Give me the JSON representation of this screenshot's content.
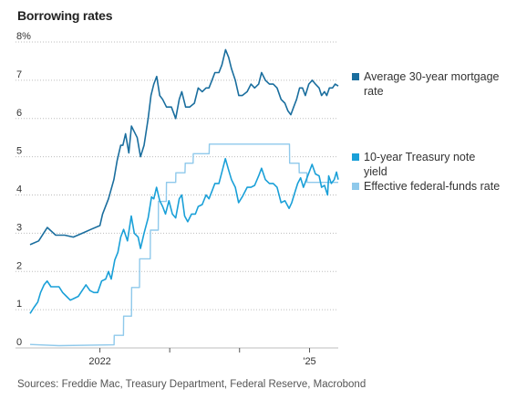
{
  "title": "Borrowing rates",
  "source": "Sources: Freddie Mac, Treasury Department, Federal Reserve, Macrobond",
  "colors": {
    "mortgage": "#1a6e9e",
    "treasury": "#1aa0d8",
    "fedfunds": "#8fc9eb",
    "grid": "#bdbdbd"
  },
  "legend": {
    "mortgage": "Average 30-year mortgage rate",
    "treasury": "10-year Treasury note yield",
    "fedfunds": "Effective federal-funds rate"
  },
  "chart_data": {
    "type": "line",
    "title": "Borrowing rates",
    "xlabel": "",
    "ylabel": "",
    "ylim": [
      0,
      8
    ],
    "xlim": [
      "2021-01-01",
      "2025-05-31"
    ],
    "yticks": [
      "0",
      "1",
      "2",
      "3",
      "4",
      "5",
      "6",
      "7",
      "8%"
    ],
    "xticks": [
      {
        "label": "2022",
        "date": "2022-01-01"
      },
      {
        "label": "'25",
        "date": "2025-01-01"
      }
    ],
    "grid": "horizontal-dotted",
    "legend_position": "right",
    "series": [
      {
        "name": "Average 30-year mortgage rate",
        "key": "mortgage",
        "points": [
          [
            "2021-01-01",
            2.7
          ],
          [
            "2021-02-15",
            2.8
          ],
          [
            "2021-04-01",
            3.15
          ],
          [
            "2021-05-15",
            2.95
          ],
          [
            "2021-07-01",
            2.95
          ],
          [
            "2021-08-15",
            2.9
          ],
          [
            "2021-10-01",
            3.0
          ],
          [
            "2021-11-15",
            3.1
          ],
          [
            "2022-01-01",
            3.2
          ],
          [
            "2022-01-15",
            3.5
          ],
          [
            "2022-02-15",
            3.9
          ],
          [
            "2022-03-15",
            4.4
          ],
          [
            "2022-04-01",
            4.9
          ],
          [
            "2022-04-20",
            5.3
          ],
          [
            "2022-05-01",
            5.3
          ],
          [
            "2022-05-15",
            5.6
          ],
          [
            "2022-06-01",
            5.1
          ],
          [
            "2022-06-15",
            5.8
          ],
          [
            "2022-06-25",
            5.7
          ],
          [
            "2022-07-15",
            5.5
          ],
          [
            "2022-08-01",
            5.0
          ],
          [
            "2022-08-20",
            5.3
          ],
          [
            "2022-09-10",
            6.0
          ],
          [
            "2022-09-25",
            6.6
          ],
          [
            "2022-10-10",
            6.9
          ],
          [
            "2022-10-25",
            7.1
          ],
          [
            "2022-11-10",
            6.6
          ],
          [
            "2022-11-25",
            6.5
          ],
          [
            "2022-12-15",
            6.3
          ],
          [
            "2023-01-10",
            6.3
          ],
          [
            "2023-02-01",
            6.0
          ],
          [
            "2023-02-20",
            6.5
          ],
          [
            "2023-03-05",
            6.7
          ],
          [
            "2023-03-25",
            6.3
          ],
          [
            "2023-04-15",
            6.3
          ],
          [
            "2023-05-10",
            6.4
          ],
          [
            "2023-05-30",
            6.8
          ],
          [
            "2023-06-20",
            6.7
          ],
          [
            "2023-07-10",
            6.8
          ],
          [
            "2023-07-25",
            6.8
          ],
          [
            "2023-08-10",
            7.0
          ],
          [
            "2023-08-25",
            7.2
          ],
          [
            "2023-09-15",
            7.2
          ],
          [
            "2023-10-01",
            7.4
          ],
          [
            "2023-10-20",
            7.8
          ],
          [
            "2023-11-05",
            7.6
          ],
          [
            "2023-11-20",
            7.3
          ],
          [
            "2023-12-10",
            7.0
          ],
          [
            "2023-12-28",
            6.6
          ],
          [
            "2024-01-15",
            6.6
          ],
          [
            "2024-02-10",
            6.7
          ],
          [
            "2024-03-01",
            6.9
          ],
          [
            "2024-03-20",
            6.8
          ],
          [
            "2024-04-10",
            6.9
          ],
          [
            "2024-04-25",
            7.2
          ],
          [
            "2024-05-15",
            7.0
          ],
          [
            "2024-06-05",
            6.9
          ],
          [
            "2024-06-25",
            6.9
          ],
          [
            "2024-07-15",
            6.8
          ],
          [
            "2024-08-05",
            6.5
          ],
          [
            "2024-08-25",
            6.4
          ],
          [
            "2024-09-10",
            6.2
          ],
          [
            "2024-09-25",
            6.1
          ],
          [
            "2024-10-10",
            6.3
          ],
          [
            "2024-10-25",
            6.5
          ],
          [
            "2024-11-10",
            6.8
          ],
          [
            "2024-11-25",
            6.8
          ],
          [
            "2024-12-10",
            6.6
          ],
          [
            "2024-12-28",
            6.9
          ],
          [
            "2025-01-15",
            7.0
          ],
          [
            "2025-02-01",
            6.9
          ],
          [
            "2025-02-20",
            6.8
          ],
          [
            "2025-03-05",
            6.6
          ],
          [
            "2025-03-20",
            6.7
          ],
          [
            "2025-04-01",
            6.6
          ],
          [
            "2025-04-15",
            6.8
          ],
          [
            "2025-05-01",
            6.8
          ],
          [
            "2025-05-15",
            6.9
          ],
          [
            "2025-05-31",
            6.85
          ]
        ]
      },
      {
        "name": "10-year Treasury note yield",
        "key": "treasury",
        "points": [
          [
            "2021-01-01",
            0.9
          ],
          [
            "2021-01-20",
            1.05
          ],
          [
            "2021-02-10",
            1.2
          ],
          [
            "2021-02-25",
            1.45
          ],
          [
            "2021-03-15",
            1.65
          ],
          [
            "2021-03-31",
            1.75
          ],
          [
            "2021-04-20",
            1.6
          ],
          [
            "2021-05-10",
            1.6
          ],
          [
            "2021-06-01",
            1.6
          ],
          [
            "2021-06-20",
            1.45
          ],
          [
            "2021-07-10",
            1.35
          ],
          [
            "2021-07-30",
            1.25
          ],
          [
            "2021-08-20",
            1.3
          ],
          [
            "2021-09-10",
            1.35
          ],
          [
            "2021-09-30",
            1.5
          ],
          [
            "2021-10-20",
            1.65
          ],
          [
            "2021-11-10",
            1.5
          ],
          [
            "2021-11-30",
            1.45
          ],
          [
            "2021-12-20",
            1.45
          ],
          [
            "2022-01-10",
            1.75
          ],
          [
            "2022-01-31",
            1.8
          ],
          [
            "2022-02-15",
            2.0
          ],
          [
            "2022-03-01",
            1.8
          ],
          [
            "2022-03-20",
            2.3
          ],
          [
            "2022-04-05",
            2.5
          ],
          [
            "2022-04-20",
            2.9
          ],
          [
            "2022-05-05",
            3.1
          ],
          [
            "2022-05-25",
            2.8
          ],
          [
            "2022-06-14",
            3.45
          ],
          [
            "2022-06-30",
            3.0
          ],
          [
            "2022-07-20",
            2.9
          ],
          [
            "2022-08-01",
            2.6
          ],
          [
            "2022-08-20",
            3.0
          ],
          [
            "2022-09-10",
            3.4
          ],
          [
            "2022-09-28",
            3.95
          ],
          [
            "2022-10-10",
            3.9
          ],
          [
            "2022-10-24",
            4.2
          ],
          [
            "2022-11-10",
            3.85
          ],
          [
            "2022-11-25",
            3.7
          ],
          [
            "2022-12-10",
            3.5
          ],
          [
            "2022-12-28",
            3.85
          ],
          [
            "2023-01-15",
            3.5
          ],
          [
            "2023-02-01",
            3.4
          ],
          [
            "2023-02-20",
            3.9
          ],
          [
            "2023-03-05",
            4.0
          ],
          [
            "2023-03-20",
            3.45
          ],
          [
            "2023-04-05",
            3.3
          ],
          [
            "2023-04-25",
            3.5
          ],
          [
            "2023-05-15",
            3.5
          ],
          [
            "2023-05-30",
            3.7
          ],
          [
            "2023-06-20",
            3.75
          ],
          [
            "2023-07-10",
            4.0
          ],
          [
            "2023-07-25",
            3.9
          ],
          [
            "2023-08-10",
            4.1
          ],
          [
            "2023-08-25",
            4.3
          ],
          [
            "2023-09-15",
            4.3
          ],
          [
            "2023-10-01",
            4.6
          ],
          [
            "2023-10-19",
            4.95
          ],
          [
            "2023-11-05",
            4.65
          ],
          [
            "2023-11-20",
            4.4
          ],
          [
            "2023-12-10",
            4.2
          ],
          [
            "2023-12-27",
            3.8
          ],
          [
            "2024-01-15",
            3.95
          ],
          [
            "2024-02-10",
            4.2
          ],
          [
            "2024-03-01",
            4.2
          ],
          [
            "2024-03-20",
            4.25
          ],
          [
            "2024-04-10",
            4.5
          ],
          [
            "2024-04-25",
            4.7
          ],
          [
            "2024-05-15",
            4.4
          ],
          [
            "2024-06-05",
            4.3
          ],
          [
            "2024-06-25",
            4.3
          ],
          [
            "2024-07-15",
            4.2
          ],
          [
            "2024-08-05",
            3.8
          ],
          [
            "2024-08-25",
            3.85
          ],
          [
            "2024-09-16",
            3.65
          ],
          [
            "2024-09-30",
            3.8
          ],
          [
            "2024-10-15",
            4.05
          ],
          [
            "2024-10-31",
            4.3
          ],
          [
            "2024-11-15",
            4.45
          ],
          [
            "2024-11-30",
            4.2
          ],
          [
            "2024-12-15",
            4.4
          ],
          [
            "2025-01-14",
            4.8
          ],
          [
            "2025-02-01",
            4.55
          ],
          [
            "2025-02-20",
            4.5
          ],
          [
            "2025-03-05",
            4.2
          ],
          [
            "2025-03-20",
            4.25
          ],
          [
            "2025-04-05",
            4.0
          ],
          [
            "2025-04-11",
            4.5
          ],
          [
            "2025-04-25",
            4.3
          ],
          [
            "2025-05-10",
            4.4
          ],
          [
            "2025-05-22",
            4.6
          ],
          [
            "2025-05-31",
            4.4
          ]
        ]
      },
      {
        "name": "Effective federal-funds rate",
        "key": "fedfunds",
        "points": [
          [
            "2021-01-01",
            0.09
          ],
          [
            "2021-06-01",
            0.06
          ],
          [
            "2022-03-16",
            0.08
          ],
          [
            "2022-03-17",
            0.33
          ],
          [
            "2022-05-04",
            0.33
          ],
          [
            "2022-05-05",
            0.83
          ],
          [
            "2022-06-15",
            0.83
          ],
          [
            "2022-06-16",
            1.58
          ],
          [
            "2022-07-27",
            1.58
          ],
          [
            "2022-07-28",
            2.33
          ],
          [
            "2022-09-21",
            2.33
          ],
          [
            "2022-09-22",
            3.08
          ],
          [
            "2022-11-02",
            3.08
          ],
          [
            "2022-11-03",
            3.83
          ],
          [
            "2022-12-14",
            3.83
          ],
          [
            "2022-12-15",
            4.33
          ],
          [
            "2023-02-01",
            4.33
          ],
          [
            "2023-02-02",
            4.58
          ],
          [
            "2023-03-22",
            4.58
          ],
          [
            "2023-03-23",
            4.83
          ],
          [
            "2023-05-03",
            4.83
          ],
          [
            "2023-05-04",
            5.08
          ],
          [
            "2023-07-26",
            5.08
          ],
          [
            "2023-07-27",
            5.33
          ],
          [
            "2024-09-18",
            5.33
          ],
          [
            "2024-09-19",
            4.83
          ],
          [
            "2024-11-07",
            4.83
          ],
          [
            "2024-11-08",
            4.58
          ],
          [
            "2024-12-18",
            4.58
          ],
          [
            "2024-12-19",
            4.33
          ],
          [
            "2025-05-31",
            4.33
          ]
        ]
      }
    ]
  }
}
